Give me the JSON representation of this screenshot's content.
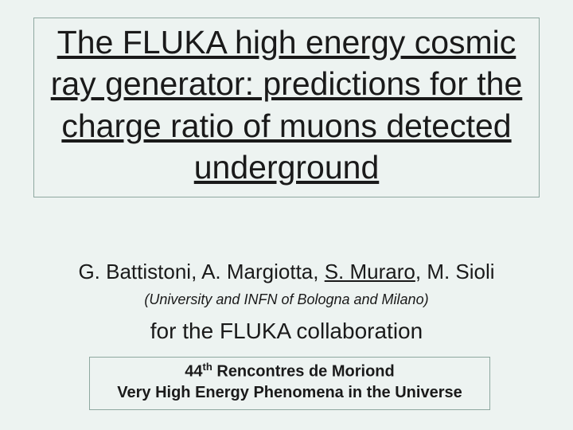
{
  "page": {
    "background_color": "#edf3f1",
    "border_color": "#8ea8a0",
    "text_color": "#1a1a1a"
  },
  "title_box": {
    "text": "The FLUKA high energy cosmic ray generator: predictions for the charge ratio of muons detected underground",
    "fontsize": 41,
    "underline": true
  },
  "authors": {
    "list": [
      {
        "name": "G. Battistoni",
        "underline": false
      },
      {
        "name": "A. Margiotta",
        "underline": false
      },
      {
        "name": "S. Muraro",
        "underline": true
      },
      {
        "name": "M. Sioli",
        "underline": false
      }
    ],
    "fontsize": 26
  },
  "affiliation": {
    "text": "(University and INFN of Bologna and Milano)",
    "fontsize": 18,
    "italic": true
  },
  "collaboration": {
    "text": "for the FLUKA collaboration",
    "fontsize": 28
  },
  "conference_box": {
    "line1_prefix": "44",
    "line1_sup": "th",
    "line1_suffix": " Rencontres de Moriond",
    "line2": "Very High Energy Phenomena in the Universe",
    "fontsize": 20,
    "bold": true
  }
}
